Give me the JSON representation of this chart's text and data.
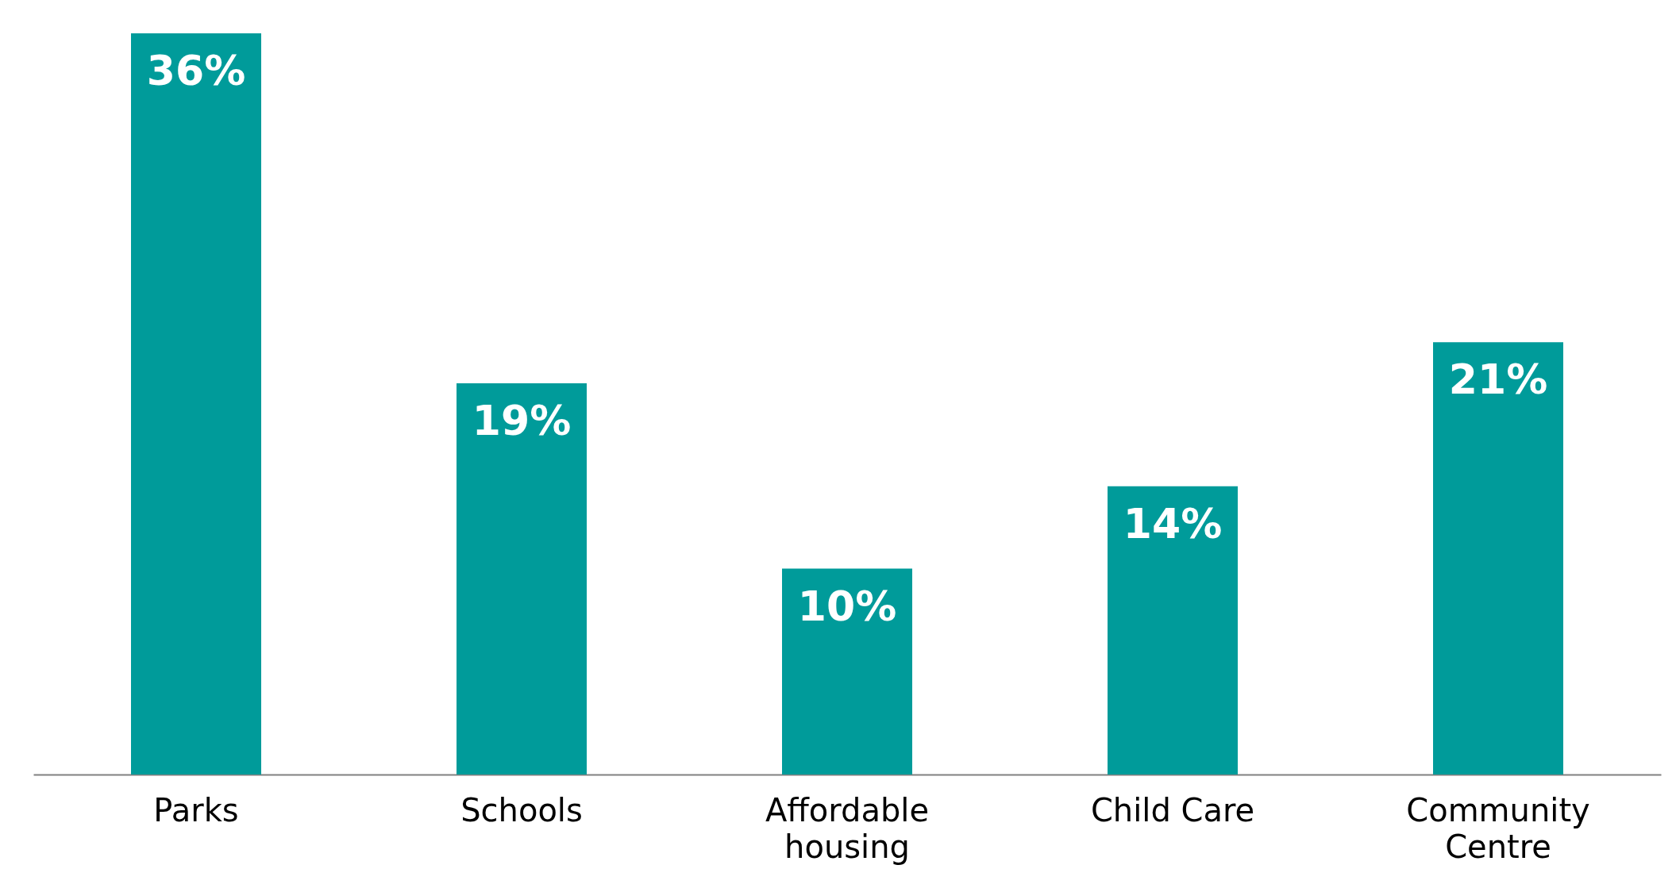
{
  "chart_data": {
    "type": "bar",
    "categories": [
      "Parks",
      "Schools",
      "Affordable housing",
      "Child Care",
      "Community Centre"
    ],
    "values": [
      36,
      19,
      10,
      14,
      21
    ],
    "value_labels": [
      "36%",
      "19%",
      "10%",
      "14%",
      "21%"
    ],
    "color": "#009b9a",
    "grid": false
  }
}
